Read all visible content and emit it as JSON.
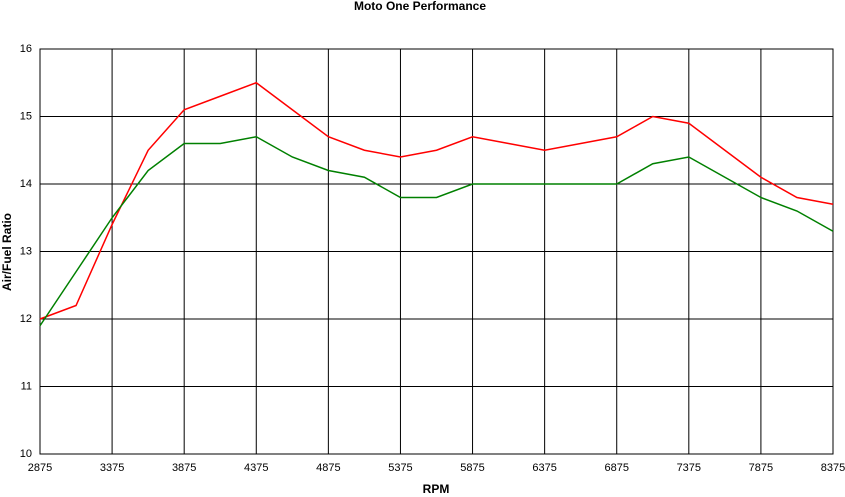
{
  "chart_data": {
    "type": "line",
    "title": "Moto One Performance",
    "x_label": "RPM",
    "y_label": "Air/Fuel Ratio",
    "x": [
      2875,
      3125,
      3375,
      3625,
      3875,
      4125,
      4375,
      4625,
      4875,
      5125,
      5375,
      5625,
      5875,
      6125,
      6375,
      6625,
      6875,
      7125,
      7375,
      7625,
      7875,
      8125,
      8375
    ],
    "series": [
      {
        "color": "#ff0000",
        "values": [
          12.0,
          12.2,
          13.4,
          14.5,
          15.1,
          15.3,
          15.5,
          15.1,
          14.7,
          14.5,
          14.4,
          14.5,
          14.7,
          14.6,
          14.5,
          14.6,
          14.7,
          15.0,
          14.9,
          14.5,
          14.1,
          13.8,
          13.7
        ]
      },
      {
        "color": "#008000",
        "values": [
          11.9,
          12.7,
          13.5,
          14.2,
          14.6,
          14.6,
          14.7,
          14.4,
          14.2,
          14.1,
          13.8,
          13.8,
          14.0,
          14.0,
          14.0,
          14.0,
          14.0,
          14.3,
          14.4,
          14.1,
          13.8,
          13.6,
          13.3
        ]
      }
    ],
    "xlim": [
      2875,
      8375
    ],
    "xticks": [
      2875,
      3375,
      3875,
      4375,
      4875,
      5375,
      5875,
      6375,
      6875,
      7375,
      7875,
      8375
    ],
    "ylim": [
      10,
      16
    ],
    "yticks": [
      10,
      11,
      12,
      13,
      14,
      15,
      16
    ],
    "grid": true
  }
}
